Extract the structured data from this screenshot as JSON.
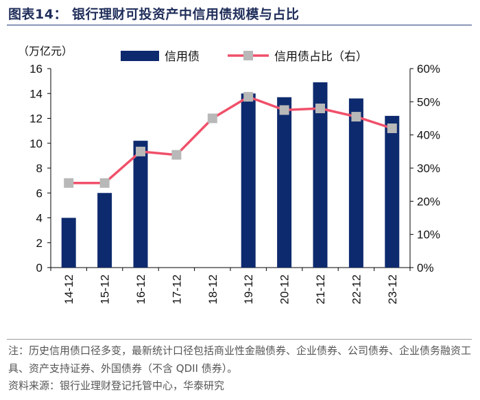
{
  "figure": {
    "title": "图表14：  银行理财可投资产中信用债规模与占比",
    "note": "注：历史信用债口径多变，最新统计口径包括商业性金融债券、企业债券、公司债券、企业债务融资工具、资产支持证券、外国债券（不含 QDII 债券）。",
    "source": "资料来源：银行业理财登记托管中心，华泰研究"
  },
  "chart_data": {
    "type": "bar+line",
    "categories": [
      "14-12",
      "15-12",
      "16-12",
      "17-12",
      "18-12",
      "19-12",
      "20-12",
      "21-12",
      "22-12",
      "23-12"
    ],
    "series": [
      {
        "name": "信用债",
        "type": "bar",
        "axis": "left",
        "values": [
          4.0,
          6.0,
          10.2,
          null,
          null,
          14.0,
          13.7,
          14.9,
          13.6,
          12.2
        ]
      },
      {
        "name": "信用债占比（右）",
        "type": "line",
        "axis": "right",
        "values": [
          25.5,
          25.5,
          35.0,
          34.0,
          45.0,
          51.5,
          47.5,
          48.0,
          45.5,
          42.0
        ]
      }
    ],
    "left_axis": {
      "label": "（万亿元）",
      "min": 0,
      "max": 16,
      "ticks": [
        0,
        2,
        4,
        6,
        8,
        10,
        12,
        14,
        16
      ]
    },
    "right_axis": {
      "min": 0,
      "max": 60,
      "ticks": [
        "0%",
        "10%",
        "20%",
        "30%",
        "40%",
        "50%",
        "60%"
      ]
    },
    "colors": {
      "bar": "#0e2a6e",
      "line": "#f0506a",
      "marker": "#b8b8b8",
      "axis": "#000000"
    },
    "legend_position": "top"
  }
}
